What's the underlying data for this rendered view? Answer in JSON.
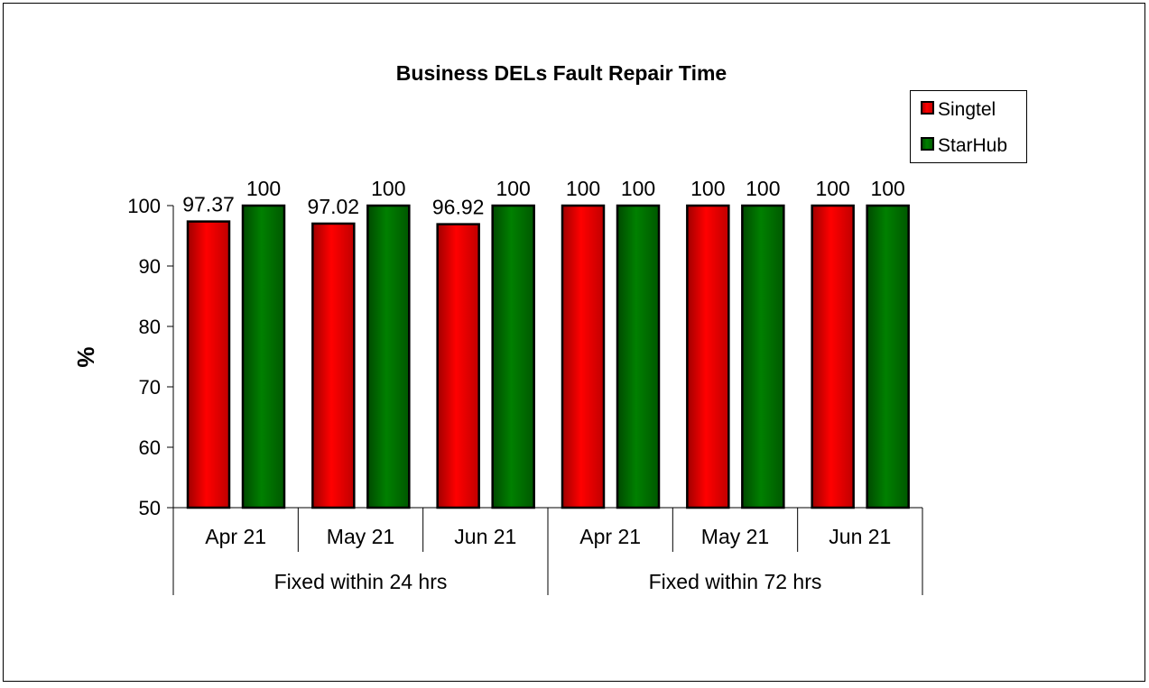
{
  "chart_data": {
    "type": "bar",
    "title": "Business DELs Fault Repair Time",
    "xlabel": "",
    "ylabel": "%",
    "ylim": [
      50,
      100
    ],
    "yticks": [
      50,
      60,
      70,
      80,
      90,
      100
    ],
    "grid": false,
    "legend_position": "top-right",
    "groups": [
      {
        "label": "Fixed within 24 hrs",
        "categories": [
          "Apr 21",
          "May 21",
          "Jun 21"
        ]
      },
      {
        "label": "Fixed within 72 hrs",
        "categories": [
          "Apr 21",
          "May 21",
          "Jun 21"
        ]
      }
    ],
    "categories": [
      "Apr 21",
      "May 21",
      "Jun 21",
      "Apr 21",
      "May 21",
      "Jun 21"
    ],
    "series": [
      {
        "name": "Singtel",
        "color": "#ff0000",
        "values": [
          97.37,
          97.02,
          96.92,
          100,
          100,
          100
        ],
        "labels": [
          "97.37",
          "97.02",
          "96.92",
          "100",
          "100",
          "100"
        ]
      },
      {
        "name": "StarHub",
        "color": "#008000",
        "values": [
          100,
          100,
          100,
          100,
          100,
          100
        ],
        "labels": [
          "100",
          "100",
          "100",
          "100",
          "100",
          "100"
        ]
      }
    ]
  }
}
